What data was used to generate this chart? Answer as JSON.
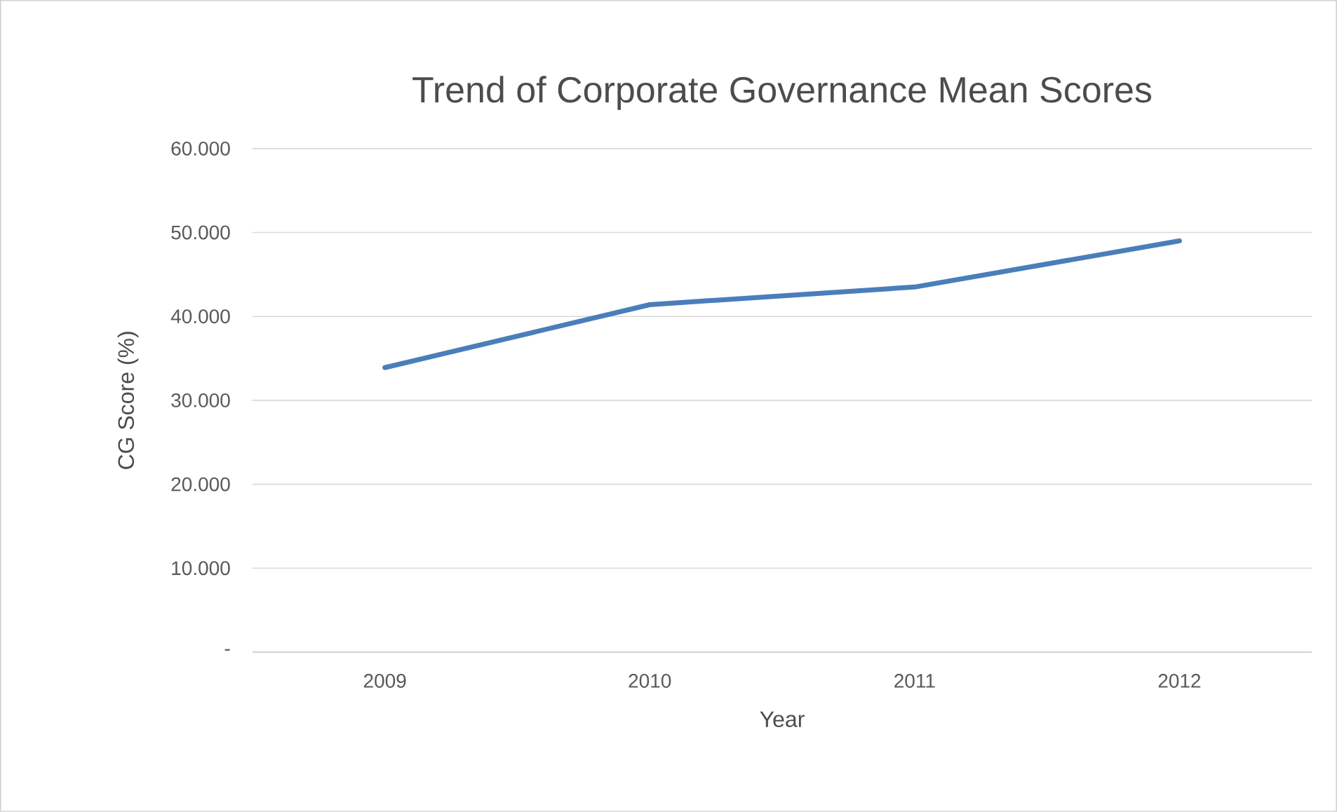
{
  "chart_data": {
    "type": "line",
    "title": "Trend of Corporate Governance Mean Scores",
    "xlabel": "Year",
    "ylabel": "CG Score (%)",
    "categories": [
      "2009",
      "2010",
      "2011",
      "2012"
    ],
    "series": [
      {
        "color": "#4a7ebb",
        "values": [
          33.9,
          41.4,
          43.5,
          49.0
        ]
      }
    ],
    "ylim": [
      0,
      60
    ],
    "yticks": [
      {
        "value": 0,
        "label": "-"
      },
      {
        "value": 10,
        "label": "10.000"
      },
      {
        "value": 20,
        "label": "20.000"
      },
      {
        "value": 30,
        "label": "30.000"
      },
      {
        "value": 40,
        "label": "40.000"
      },
      {
        "value": 50,
        "label": "50.000"
      },
      {
        "value": 60,
        "label": "60.000"
      }
    ],
    "grid": "y",
    "legend": false,
    "marker": "none",
    "line_style": "solid"
  }
}
